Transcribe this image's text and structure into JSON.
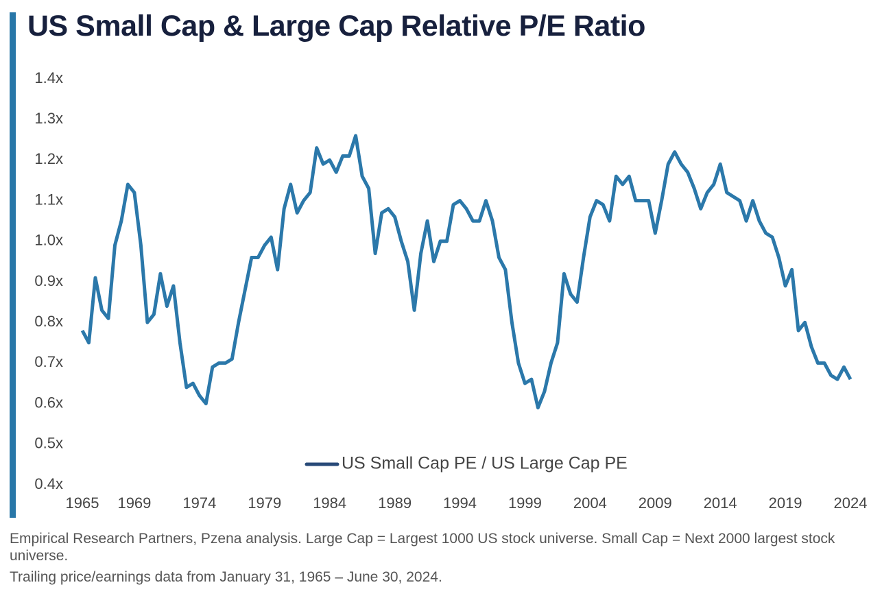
{
  "chart_data": {
    "type": "line",
    "title": "US Small Cap & Large Cap Relative P/E Ratio",
    "notes": [
      "Empirical Research Partners, Pzena analysis. Large Cap = Largest 1000 US stock universe. Small Cap = Next 2000 largest stock universe.",
      "Trailing price/earnings data from January 31, 1965 – June 30, 2024."
    ],
    "x": [
      1965,
      1965.5,
      1966,
      1966.5,
      1967,
      1967.5,
      1968,
      1968.5,
      1969,
      1969.5,
      1970,
      1970.5,
      1971,
      1971.5,
      1972,
      1972.5,
      1973,
      1973.5,
      1974,
      1974.5,
      1975,
      1975.5,
      1976,
      1976.5,
      1977,
      1977.5,
      1978,
      1978.5,
      1979,
      1979.5,
      1980,
      1980.5,
      1981,
      1981.5,
      1982,
      1982.5,
      1983,
      1983.5,
      1984,
      1984.5,
      1985,
      1985.5,
      1986,
      1986.5,
      1987,
      1987.5,
      1988,
      1988.5,
      1989,
      1989.5,
      1990,
      1990.5,
      1991,
      1991.5,
      1992,
      1992.5,
      1993,
      1993.5,
      1994,
      1994.5,
      1995,
      1995.5,
      1996,
      1996.5,
      1997,
      1997.5,
      1998,
      1998.5,
      1999,
      1999.5,
      2000,
      2000.5,
      2001,
      2001.5,
      2002,
      2002.5,
      2003,
      2003.5,
      2004,
      2004.5,
      2005,
      2005.5,
      2006,
      2006.5,
      2007,
      2007.5,
      2008,
      2008.5,
      2009,
      2009.5,
      2010,
      2010.5,
      2011,
      2011.5,
      2012,
      2012.5,
      2013,
      2013.5,
      2014,
      2014.5,
      2015,
      2015.5,
      2016,
      2016.5,
      2017,
      2017.5,
      2018,
      2018.5,
      2019,
      2019.5,
      2020,
      2020.5,
      2021,
      2021.5,
      2022,
      2022.5,
      2023,
      2023.5,
      2024
    ],
    "series": [
      {
        "name": "US Small Cap PE / US Large Cap PE",
        "color": "#2b78aa",
        "legend_color": "#284a78",
        "values": [
          0.78,
          0.75,
          0.91,
          0.83,
          0.81,
          0.99,
          1.05,
          1.14,
          1.12,
          0.99,
          0.8,
          0.82,
          0.92,
          0.84,
          0.89,
          0.75,
          0.64,
          0.65,
          0.62,
          0.6,
          0.69,
          0.7,
          0.7,
          0.71,
          0.8,
          0.88,
          0.96,
          0.96,
          0.99,
          1.01,
          0.93,
          1.08,
          1.14,
          1.07,
          1.1,
          1.12,
          1.23,
          1.19,
          1.2,
          1.17,
          1.21,
          1.21,
          1.26,
          1.16,
          1.13,
          0.97,
          1.07,
          1.08,
          1.06,
          1.0,
          0.95,
          0.83,
          0.97,
          1.05,
          0.95,
          1.0,
          1.0,
          1.09,
          1.1,
          1.08,
          1.05,
          1.05,
          1.1,
          1.05,
          0.96,
          0.93,
          0.8,
          0.7,
          0.65,
          0.66,
          0.59,
          0.63,
          0.7,
          0.75,
          0.92,
          0.87,
          0.85,
          0.96,
          1.06,
          1.1,
          1.09,
          1.05,
          1.16,
          1.14,
          1.16,
          1.1,
          1.1,
          1.1,
          1.02,
          1.1,
          1.19,
          1.22,
          1.19,
          1.17,
          1.13,
          1.08,
          1.12,
          1.14,
          1.19,
          1.12,
          1.11,
          1.1,
          1.05,
          1.1,
          1.05,
          1.02,
          1.01,
          0.96,
          0.89,
          0.93,
          0.78,
          0.8,
          0.74,
          0.7,
          0.7,
          0.67,
          0.66,
          0.69,
          0.66
        ]
      }
    ],
    "xlim": [
      1965,
      2024
    ],
    "xticks": [
      1965,
      1969,
      1974,
      1979,
      1984,
      1989,
      1994,
      1999,
      2004,
      2009,
      2014,
      2019,
      2024
    ],
    "ylim": [
      0.4,
      1.4
    ],
    "yticks": [
      {
        "value": 0.4,
        "label": "0.4x"
      },
      {
        "value": 0.5,
        "label": "0.5x"
      },
      {
        "value": 0.6,
        "label": "0.6x"
      },
      {
        "value": 0.7,
        "label": "0.7x"
      },
      {
        "value": 0.8,
        "label": "0.8x"
      },
      {
        "value": 0.9,
        "label": "0.9x"
      },
      {
        "value": 1.0,
        "label": "1.0x"
      },
      {
        "value": 1.1,
        "label": "1.1x"
      },
      {
        "value": 1.2,
        "label": "1.2x"
      },
      {
        "value": 1.3,
        "label": "1.3x"
      },
      {
        "value": 1.4,
        "label": "1.4x"
      }
    ],
    "grid": false,
    "legend": "lower center"
  }
}
